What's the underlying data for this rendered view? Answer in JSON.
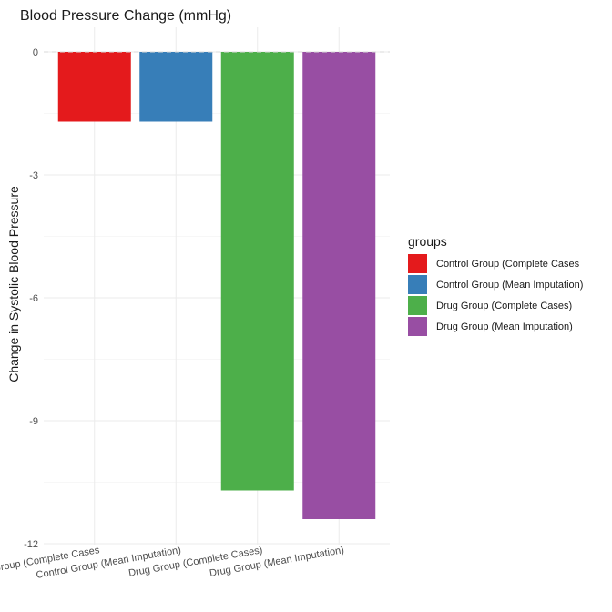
{
  "chart_data": {
    "type": "bar",
    "title": "Blood Pressure Change (mmHg)",
    "xlabel": "",
    "ylabel": "Change in Systolic Blood Pressure",
    "categories": [
      "Control Group (Complete Cases",
      "Control Group (Mean Imputation)",
      "Drug Group (Complete Cases)",
      "Drug Group (Mean Imputation)"
    ],
    "values": [
      -1.7,
      -1.7,
      -10.7,
      -11.4
    ],
    "colors": [
      "#e41a1c",
      "#377eb8",
      "#4daf4a",
      "#984ea3"
    ],
    "ylim": [
      -12,
      0
    ],
    "yticks": [
      0,
      -3,
      -6,
      -9,
      -12
    ],
    "reference_line": 0,
    "grid": true,
    "legend": {
      "title": "groups",
      "position": "right",
      "entries": [
        "Control Group (Complete Cases",
        "Control Group (Mean Imputation)",
        "Drug Group (Complete Cases)",
        "Drug Group (Mean Imputation)"
      ]
    }
  }
}
